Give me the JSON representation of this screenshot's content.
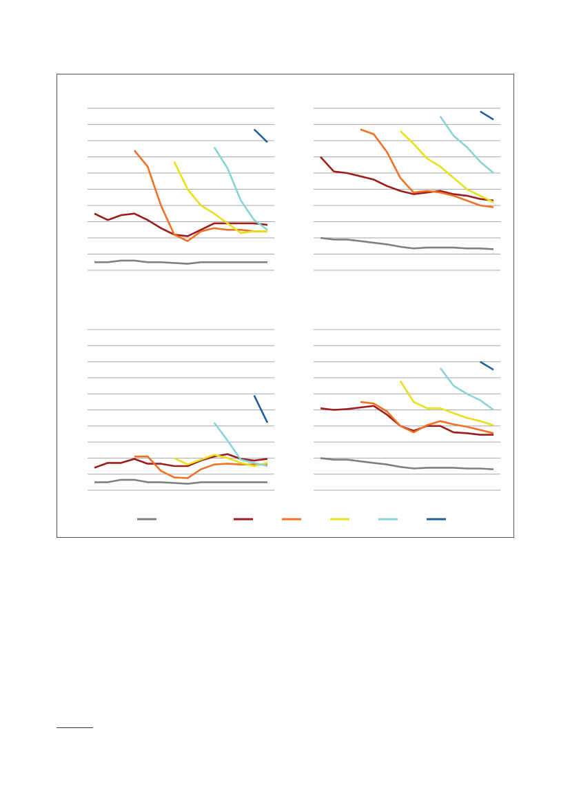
{
  "colors": {
    "grid": "#a6a6a6",
    "frame": "#555555",
    "background": "#ffffff"
  },
  "legend": {
    "placement": "bottom",
    "entries": [
      {
        "series_index": 0,
        "color": "#7f7f7f",
        "label": ""
      },
      {
        "series_index": 1,
        "color": "#9e1b1b",
        "label": ""
      },
      {
        "series_index": 2,
        "color": "#f07024",
        "label": ""
      },
      {
        "series_index": 3,
        "color": "#e6e01a",
        "label": ""
      },
      {
        "series_index": 4,
        "color": "#86d3d8",
        "label": ""
      },
      {
        "series_index": 5,
        "color": "#1f5f9e",
        "label": ""
      }
    ]
  },
  "chart_data": [
    {
      "type": "line",
      "grid": true,
      "ylim": [
        0,
        10
      ],
      "yticks": [
        0,
        1,
        2,
        3,
        4,
        5,
        6,
        7,
        8,
        9,
        10
      ],
      "x": [
        1,
        2,
        3,
        4,
        5,
        6,
        7,
        8,
        9,
        10,
        11,
        12,
        13,
        14
      ],
      "series": [
        {
          "color": "#7f7f7f",
          "values": [
            0.5,
            0.5,
            0.6,
            0.6,
            0.5,
            0.5,
            0.45,
            0.4,
            0.5,
            0.5,
            0.5,
            0.5,
            0.5,
            0.5
          ]
        },
        {
          "color": "#9e1b1b",
          "values": [
            3.5,
            3.1,
            3.4,
            3.5,
            3.1,
            2.6,
            2.2,
            2.1,
            2.5,
            2.9,
            2.9,
            2.9,
            2.9,
            2.8
          ]
        },
        {
          "color": "#f07024",
          "values": [
            null,
            null,
            null,
            7.4,
            6.4,
            4.0,
            2.2,
            1.8,
            2.4,
            2.6,
            2.5,
            2.5,
            2.4,
            2.4
          ]
        },
        {
          "color": "#e6e01a",
          "values": [
            null,
            null,
            null,
            null,
            null,
            null,
            6.7,
            5.0,
            4.0,
            3.5,
            2.9,
            2.3,
            2.4,
            2.4
          ]
        },
        {
          "color": "#86d3d8",
          "values": [
            null,
            null,
            null,
            null,
            null,
            null,
            null,
            null,
            null,
            7.6,
            6.3,
            4.3,
            3.1,
            2.5
          ]
        },
        {
          "color": "#1f5f9e",
          "values": [
            null,
            null,
            null,
            null,
            null,
            null,
            null,
            null,
            null,
            null,
            null,
            null,
            8.7,
            7.9
          ]
        }
      ]
    },
    {
      "type": "line",
      "grid": true,
      "ylim": [
        0,
        10
      ],
      "yticks": [
        0,
        1,
        2,
        3,
        4,
        5,
        6,
        7,
        8,
        9,
        10
      ],
      "x": [
        1,
        2,
        3,
        4,
        5,
        6,
        7,
        8,
        9,
        10,
        11,
        12,
        13,
        14
      ],
      "series": [
        {
          "color": "#7f7f7f",
          "values": [
            2.0,
            1.9,
            1.9,
            1.8,
            1.7,
            1.6,
            1.45,
            1.35,
            1.4,
            1.4,
            1.4,
            1.35,
            1.35,
            1.3
          ]
        },
        {
          "color": "#9e1b1b",
          "values": [
            7.0,
            6.1,
            6.0,
            5.8,
            5.6,
            5.2,
            4.9,
            4.7,
            4.8,
            4.9,
            4.7,
            4.6,
            4.4,
            4.3
          ]
        },
        {
          "color": "#f07024",
          "values": [
            null,
            null,
            null,
            8.7,
            8.4,
            7.3,
            5.7,
            4.8,
            4.9,
            4.8,
            4.6,
            4.3,
            4.0,
            3.9
          ]
        },
        {
          "color": "#e6e01a",
          "values": [
            null,
            null,
            null,
            null,
            null,
            null,
            8.6,
            7.8,
            6.9,
            6.4,
            5.7,
            5.0,
            4.6,
            4.2
          ]
        },
        {
          "color": "#86d3d8",
          "values": [
            null,
            null,
            null,
            null,
            null,
            null,
            null,
            null,
            null,
            9.5,
            8.3,
            7.6,
            6.7,
            6.0
          ]
        },
        {
          "color": "#1f5f9e",
          "values": [
            null,
            null,
            null,
            null,
            null,
            null,
            null,
            null,
            null,
            null,
            null,
            null,
            9.8,
            9.3
          ]
        }
      ]
    },
    {
      "type": "line",
      "grid": true,
      "ylim": [
        0,
        10
      ],
      "yticks": [
        0,
        1,
        2,
        3,
        4,
        5,
        6,
        7,
        8,
        9,
        10
      ],
      "x": [
        1,
        2,
        3,
        4,
        5,
        6,
        7,
        8,
        9,
        10,
        11,
        12,
        13,
        14
      ],
      "series": [
        {
          "color": "#7f7f7f",
          "values": [
            0.5,
            0.5,
            0.65,
            0.65,
            0.5,
            0.5,
            0.45,
            0.4,
            0.5,
            0.5,
            0.5,
            0.5,
            0.5,
            0.5
          ]
        },
        {
          "color": "#9e1b1b",
          "values": [
            1.4,
            1.7,
            1.7,
            1.95,
            1.65,
            1.65,
            1.5,
            1.5,
            1.85,
            2.1,
            2.25,
            1.95,
            1.85,
            1.95
          ]
        },
        {
          "color": "#f07024",
          "values": [
            null,
            null,
            null,
            2.1,
            2.1,
            1.2,
            0.8,
            0.75,
            1.3,
            1.6,
            1.65,
            1.6,
            1.6,
            1.6
          ]
        },
        {
          "color": "#e6e01a",
          "values": [
            null,
            null,
            null,
            null,
            null,
            null,
            2.0,
            1.6,
            1.9,
            2.2,
            2.0,
            1.7,
            1.5,
            1.7
          ]
        },
        {
          "color": "#86d3d8",
          "values": [
            null,
            null,
            null,
            null,
            null,
            null,
            null,
            null,
            null,
            4.2,
            3.1,
            1.9,
            1.7,
            1.5
          ]
        },
        {
          "color": "#1f5f9e",
          "values": [
            null,
            null,
            null,
            null,
            null,
            null,
            null,
            null,
            null,
            null,
            null,
            null,
            5.9,
            4.2
          ]
        }
      ]
    },
    {
      "type": "line",
      "grid": true,
      "ylim": [
        0,
        10
      ],
      "yticks": [
        0,
        1,
        2,
        3,
        4,
        5,
        6,
        7,
        8,
        9,
        10
      ],
      "x": [
        1,
        2,
        3,
        4,
        5,
        6,
        7,
        8,
        9,
        10,
        11,
        12,
        13,
        14
      ],
      "series": [
        {
          "color": "#7f7f7f",
          "values": [
            2.0,
            1.9,
            1.9,
            1.8,
            1.7,
            1.6,
            1.45,
            1.35,
            1.4,
            1.4,
            1.4,
            1.35,
            1.35,
            1.3
          ]
        },
        {
          "color": "#9e1b1b",
          "values": [
            5.1,
            5.0,
            5.05,
            5.15,
            5.25,
            4.7,
            4.0,
            3.7,
            4.0,
            4.0,
            3.6,
            3.55,
            3.45,
            3.45
          ]
        },
        {
          "color": "#f07024",
          "values": [
            null,
            null,
            null,
            5.5,
            5.4,
            4.9,
            4.0,
            3.6,
            4.05,
            4.3,
            4.1,
            3.95,
            3.75,
            3.55
          ]
        },
        {
          "color": "#e6e01a",
          "values": [
            null,
            null,
            null,
            null,
            null,
            null,
            6.8,
            5.5,
            5.1,
            5.1,
            4.8,
            4.5,
            4.3,
            4.05
          ]
        },
        {
          "color": "#86d3d8",
          "values": [
            null,
            null,
            null,
            null,
            null,
            null,
            null,
            null,
            null,
            7.6,
            6.5,
            6.0,
            5.6,
            5.0
          ]
        },
        {
          "color": "#1f5f9e",
          "values": [
            null,
            null,
            null,
            null,
            null,
            null,
            null,
            null,
            null,
            null,
            null,
            null,
            8.0,
            7.5
          ]
        }
      ]
    }
  ]
}
